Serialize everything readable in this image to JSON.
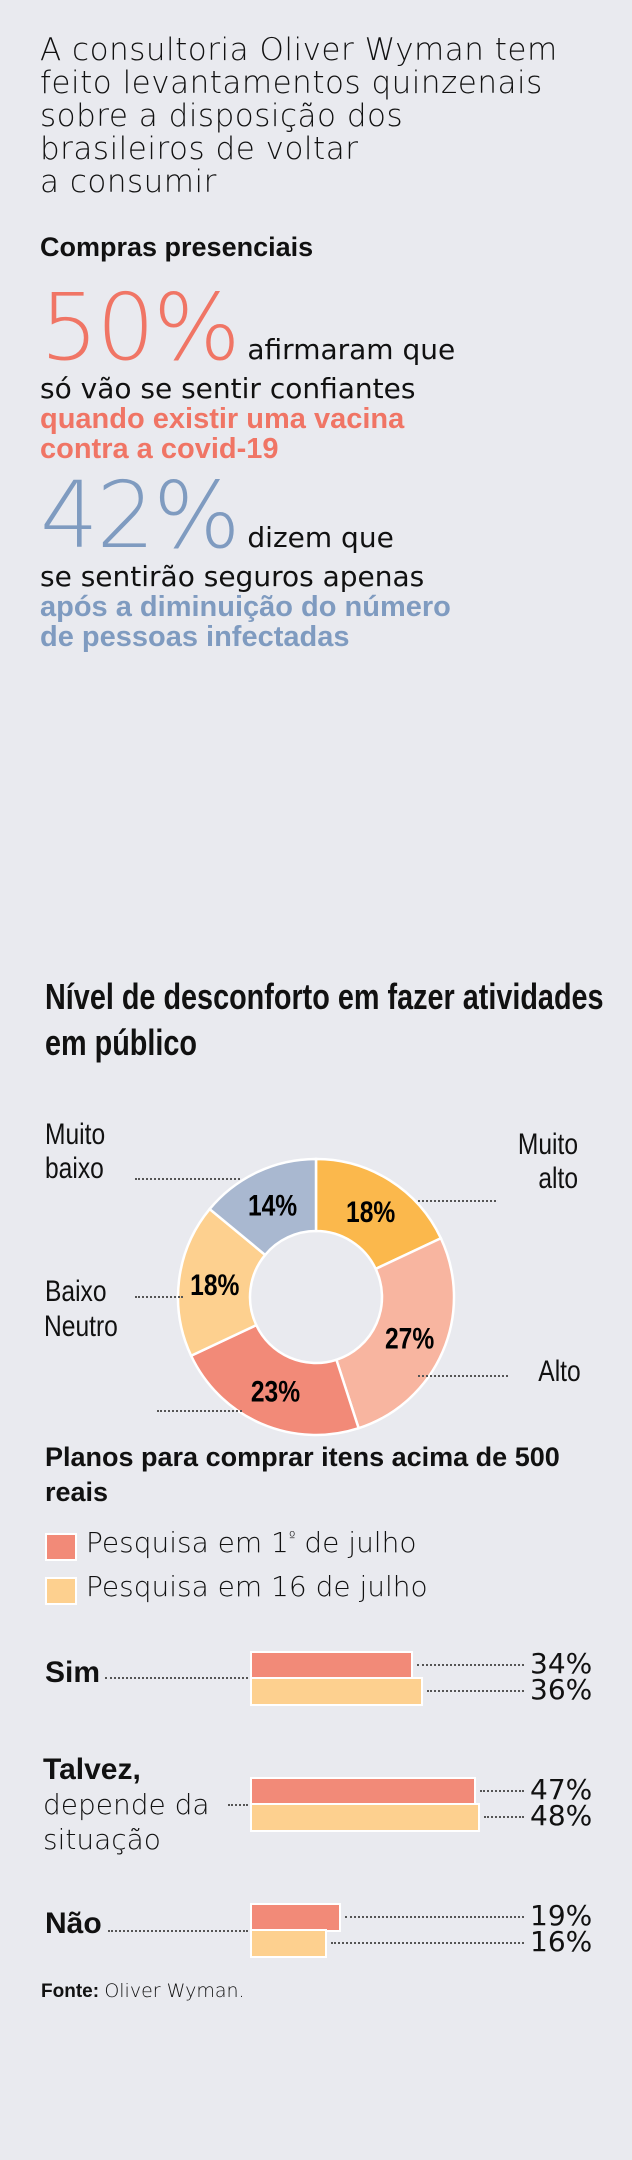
{
  "intro": [
    "A consultoria Oliver Wyman tem",
    "feito levantamentos quinzenais",
    "sobre a disposição dos",
    "brasileiros de voltar",
    "a consumir"
  ],
  "section1": {
    "title": "Compras presenciais",
    "stat1": {
      "value": "50%",
      "tail": "afirmaram que",
      "line2": "só vão se sentir confiantes",
      "highlight": [
        "quando existir uma vacina",
        "contra a covid-19"
      ],
      "color": "#f07565"
    },
    "stat2": {
      "value": "42%",
      "tail": "dizem que",
      "line2": "se sentirão seguros apenas",
      "highlight": [
        "após a diminuição do número",
        "de pessoas infectadas"
      ],
      "color": "#7f9bc0"
    }
  },
  "chart_data": [
    {
      "type": "pie",
      "title": "Nível de desconforto em fazer atividades em público",
      "donut": true,
      "slices": [
        {
          "label": "Muito alto",
          "value": 18,
          "text": "18%",
          "color": "#fbb84c"
        },
        {
          "label": "Alto",
          "value": 27,
          "text": "27%",
          "color": "#f8b5a0"
        },
        {
          "label": "Neutro",
          "value": 23,
          "text": "23%",
          "color": "#f28a78"
        },
        {
          "label": "Baixo",
          "value": 18,
          "text": "18%",
          "color": "#fdd08f"
        },
        {
          "label": "Muito baixo",
          "value": 14,
          "text": "14%",
          "color": "#a9b8d0"
        }
      ]
    },
    {
      "type": "bar",
      "orientation": "horizontal",
      "title": "Planos para comprar itens acima de 500 reais",
      "categories": [
        {
          "bold": "Sim",
          "rest": ""
        },
        {
          "bold": "Talvez,",
          "rest": "depende da situação"
        },
        {
          "bold": "Não",
          "rest": ""
        }
      ],
      "series": [
        {
          "name": "Pesquisa em 1º de julho",
          "name_pre": "Pesquisa em 1",
          "name_sup": "º",
          "name_post": " de julho",
          "color": "#f28a78",
          "values": [
            34,
            47,
            19
          ],
          "labels": [
            "34%",
            "47%",
            "19%"
          ]
        },
        {
          "name": "Pesquisa em 16 de julho",
          "color": "#fdd08f",
          "values": [
            36,
            48,
            16
          ],
          "labels": [
            "36%",
            "48%",
            "16%"
          ]
        }
      ]
    }
  ],
  "source": {
    "label": "Fonte:",
    "text": "Oliver Wyman."
  }
}
